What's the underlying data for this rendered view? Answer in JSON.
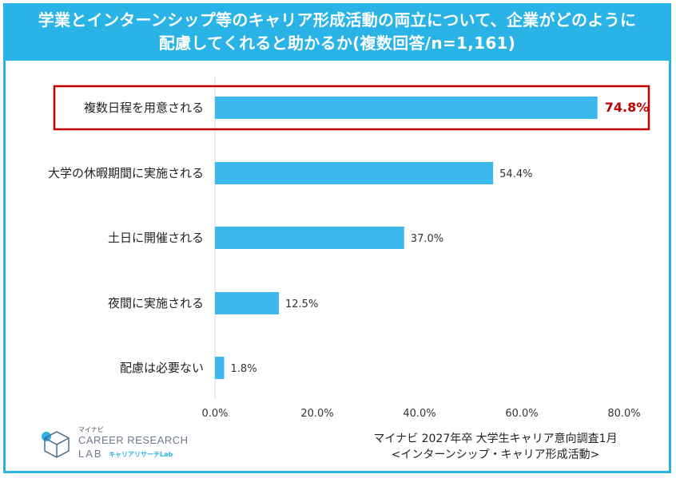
{
  "title": {
    "line1": "学業とインターンシップ等のキャリア形成活動の両立について、企業がどのように",
    "line2": "配慮してくれると助かるか(複数回答/n=1,161)"
  },
  "chart_data": {
    "type": "bar",
    "orientation": "horizontal",
    "categories": [
      "複数日程を用意される",
      "大学の休暇期間に実施される",
      "土日に開催される",
      "夜間に実施される",
      "配慮は必要ない"
    ],
    "values": [
      74.8,
      54.4,
      37.0,
      12.5,
      1.8
    ],
    "value_labels": [
      "74.8%",
      "54.4%",
      "37.0%",
      "12.5%",
      "1.8%"
    ],
    "highlight_index": 0,
    "xlim": [
      0,
      80
    ],
    "xticks": [
      0,
      20,
      40,
      60,
      80
    ],
    "xtick_labels": [
      "0.0%",
      "20.0%",
      "40.0%",
      "60.0%",
      "80.0%"
    ],
    "bar_color": "#3db8ec",
    "highlight_color": "#c00000",
    "grid": false
  },
  "logo": {
    "brand": "マイナビ",
    "line1": "CAREER RESEARCH",
    "line2": "LAB",
    "sub": "キャリアリサーチLab"
  },
  "source": {
    "line1": "マイナビ 2027年卒 大学生キャリア意向調査1月",
    "line2": "<インターンシップ・キャリア形成活動>"
  },
  "colors": {
    "accent": "#29b3e6",
    "bar": "#3db8ec",
    "highlight": "#c00000"
  }
}
